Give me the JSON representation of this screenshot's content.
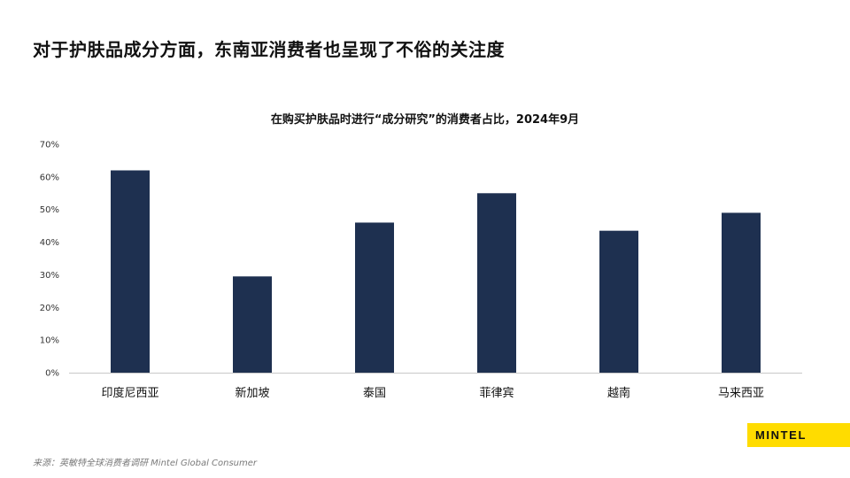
{
  "header": {
    "title": "对于护肤品成分方面，东南亚消费者也呈现了不俗的关注度"
  },
  "chart_data": {
    "type": "bar",
    "title": "在购买护肤品时进行“成分研究”的消费者占比，2024年9月",
    "categories": [
      "印度尼西亚",
      "新加坡",
      "泰国",
      "菲律宾",
      "越南",
      "马来西亚"
    ],
    "values": [
      62,
      29.5,
      46,
      55,
      43.5,
      49
    ],
    "unit": "%",
    "ylim": [
      0,
      70
    ],
    "yticks": [
      0,
      10,
      20,
      30,
      40,
      50,
      60,
      70
    ],
    "ytick_labels": [
      "0%",
      "10%",
      "20%",
      "30%",
      "40%",
      "50%",
      "60%",
      "70%"
    ],
    "xlabel": "",
    "ylabel": "",
    "grid": false,
    "bar_color": "#1e3050",
    "axis_color": "#c8c8c8"
  },
  "footer": {
    "source": "来源：英敏特全球消费者调研 Mintel Global Consumer",
    "logo_text": "MINTEL",
    "logo_color": "#ffdc00"
  }
}
